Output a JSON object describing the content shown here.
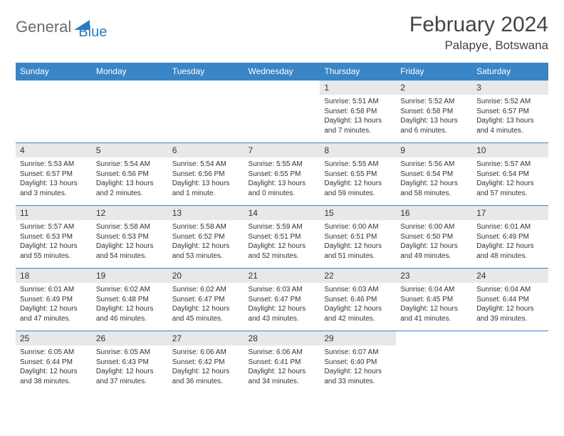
{
  "brand": {
    "part1": "General",
    "part2": "Blue"
  },
  "title": "February 2024",
  "location": "Palapye, Botswana",
  "colors": {
    "header_bg": "#3a85c6",
    "header_text": "#ffffff",
    "daynum_bg": "#e8e8e8",
    "border": "#3a85c6",
    "logo_gray": "#6b6b6b",
    "logo_blue": "#2b7bbd"
  },
  "dow": [
    "Sunday",
    "Monday",
    "Tuesday",
    "Wednesday",
    "Thursday",
    "Friday",
    "Saturday"
  ],
  "weeks": [
    [
      null,
      null,
      null,
      null,
      {
        "d": "1",
        "sr": "5:51 AM",
        "ss": "6:58 PM",
        "dl": "13 hours and 7 minutes."
      },
      {
        "d": "2",
        "sr": "5:52 AM",
        "ss": "6:58 PM",
        "dl": "13 hours and 6 minutes."
      },
      {
        "d": "3",
        "sr": "5:52 AM",
        "ss": "6:57 PM",
        "dl": "13 hours and 4 minutes."
      }
    ],
    [
      {
        "d": "4",
        "sr": "5:53 AM",
        "ss": "6:57 PM",
        "dl": "13 hours and 3 minutes."
      },
      {
        "d": "5",
        "sr": "5:54 AM",
        "ss": "6:56 PM",
        "dl": "13 hours and 2 minutes."
      },
      {
        "d": "6",
        "sr": "5:54 AM",
        "ss": "6:56 PM",
        "dl": "13 hours and 1 minute."
      },
      {
        "d": "7",
        "sr": "5:55 AM",
        "ss": "6:55 PM",
        "dl": "13 hours and 0 minutes."
      },
      {
        "d": "8",
        "sr": "5:55 AM",
        "ss": "6:55 PM",
        "dl": "12 hours and 59 minutes."
      },
      {
        "d": "9",
        "sr": "5:56 AM",
        "ss": "6:54 PM",
        "dl": "12 hours and 58 minutes."
      },
      {
        "d": "10",
        "sr": "5:57 AM",
        "ss": "6:54 PM",
        "dl": "12 hours and 57 minutes."
      }
    ],
    [
      {
        "d": "11",
        "sr": "5:57 AM",
        "ss": "6:53 PM",
        "dl": "12 hours and 55 minutes."
      },
      {
        "d": "12",
        "sr": "5:58 AM",
        "ss": "6:53 PM",
        "dl": "12 hours and 54 minutes."
      },
      {
        "d": "13",
        "sr": "5:58 AM",
        "ss": "6:52 PM",
        "dl": "12 hours and 53 minutes."
      },
      {
        "d": "14",
        "sr": "5:59 AM",
        "ss": "6:51 PM",
        "dl": "12 hours and 52 minutes."
      },
      {
        "d": "15",
        "sr": "6:00 AM",
        "ss": "6:51 PM",
        "dl": "12 hours and 51 minutes."
      },
      {
        "d": "16",
        "sr": "6:00 AM",
        "ss": "6:50 PM",
        "dl": "12 hours and 49 minutes."
      },
      {
        "d": "17",
        "sr": "6:01 AM",
        "ss": "6:49 PM",
        "dl": "12 hours and 48 minutes."
      }
    ],
    [
      {
        "d": "18",
        "sr": "6:01 AM",
        "ss": "6:49 PM",
        "dl": "12 hours and 47 minutes."
      },
      {
        "d": "19",
        "sr": "6:02 AM",
        "ss": "6:48 PM",
        "dl": "12 hours and 46 minutes."
      },
      {
        "d": "20",
        "sr": "6:02 AM",
        "ss": "6:47 PM",
        "dl": "12 hours and 45 minutes."
      },
      {
        "d": "21",
        "sr": "6:03 AM",
        "ss": "6:47 PM",
        "dl": "12 hours and 43 minutes."
      },
      {
        "d": "22",
        "sr": "6:03 AM",
        "ss": "6:46 PM",
        "dl": "12 hours and 42 minutes."
      },
      {
        "d": "23",
        "sr": "6:04 AM",
        "ss": "6:45 PM",
        "dl": "12 hours and 41 minutes."
      },
      {
        "d": "24",
        "sr": "6:04 AM",
        "ss": "6:44 PM",
        "dl": "12 hours and 39 minutes."
      }
    ],
    [
      {
        "d": "25",
        "sr": "6:05 AM",
        "ss": "6:44 PM",
        "dl": "12 hours and 38 minutes."
      },
      {
        "d": "26",
        "sr": "6:05 AM",
        "ss": "6:43 PM",
        "dl": "12 hours and 37 minutes."
      },
      {
        "d": "27",
        "sr": "6:06 AM",
        "ss": "6:42 PM",
        "dl": "12 hours and 36 minutes."
      },
      {
        "d": "28",
        "sr": "6:06 AM",
        "ss": "6:41 PM",
        "dl": "12 hours and 34 minutes."
      },
      {
        "d": "29",
        "sr": "6:07 AM",
        "ss": "6:40 PM",
        "dl": "12 hours and 33 minutes."
      },
      null,
      null
    ]
  ],
  "labels": {
    "sunrise": "Sunrise:",
    "sunset": "Sunset:",
    "daylight": "Daylight:"
  }
}
